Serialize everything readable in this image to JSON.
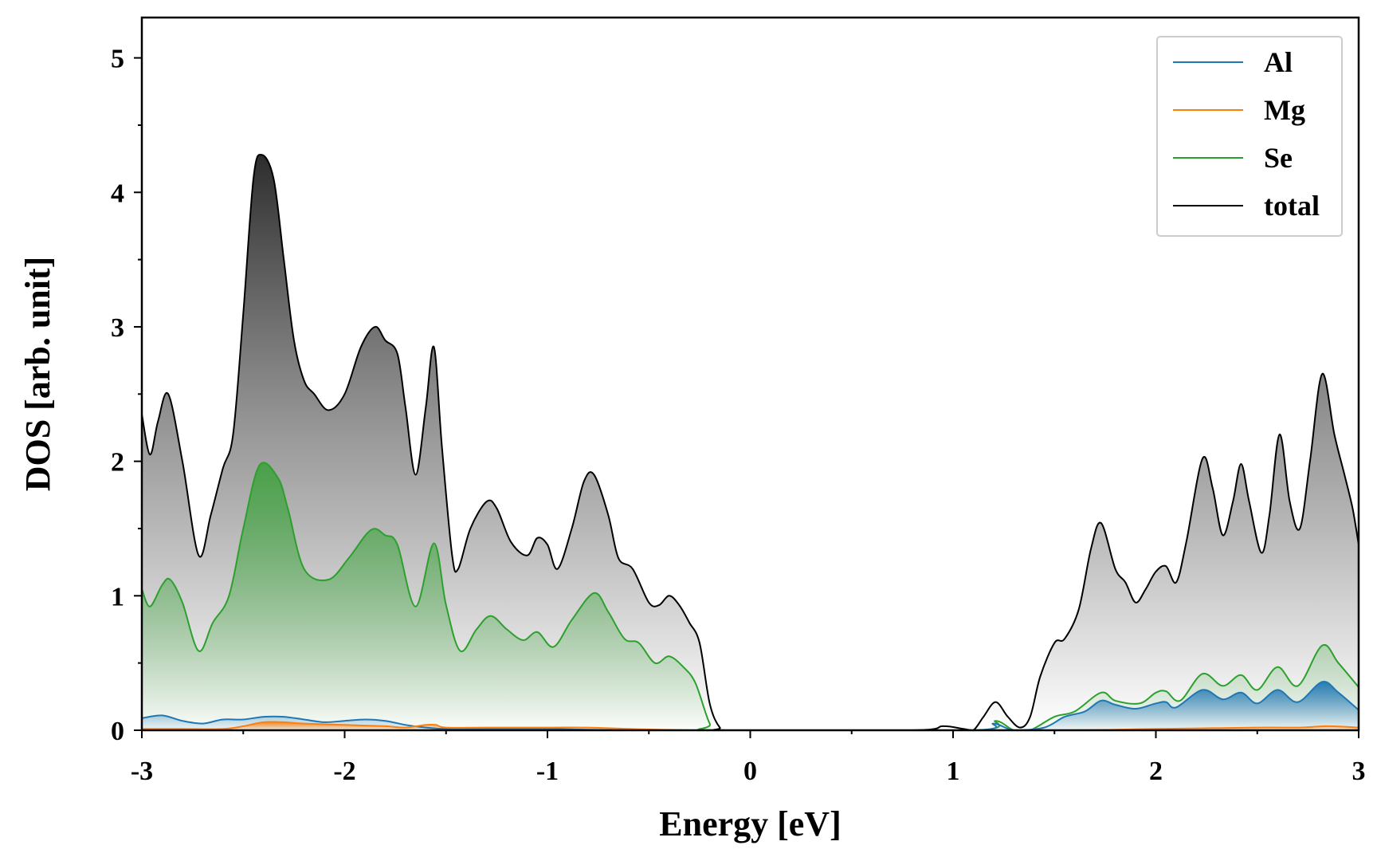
{
  "chart_data": {
    "type": "area",
    "xlabel": "Energy [eV]",
    "ylabel": "DOS [arb. unit]",
    "xlim": [
      -3,
      3
    ],
    "ylim": [
      0,
      5.3
    ],
    "xticks": [
      -3,
      -2,
      -1,
      0,
      1,
      2,
      3
    ],
    "xtick_labels": [
      "-3",
      "-2",
      "-1",
      "0",
      "1",
      "2",
      "3"
    ],
    "yticks": [
      0,
      1,
      2,
      3,
      4,
      5
    ],
    "ytick_labels": [
      "0",
      "1",
      "2",
      "3",
      "4",
      "5"
    ],
    "grid": false,
    "legend_position": "top-right",
    "series": [
      {
        "name": "Al",
        "color": "#1f77b4",
        "fill": true,
        "points": [
          [
            -3.0,
            0.09
          ],
          [
            -2.9,
            0.11
          ],
          [
            -2.8,
            0.07
          ],
          [
            -2.7,
            0.05
          ],
          [
            -2.6,
            0.08
          ],
          [
            -2.5,
            0.08
          ],
          [
            -2.4,
            0.1
          ],
          [
            -2.3,
            0.1
          ],
          [
            -2.2,
            0.08
          ],
          [
            -2.1,
            0.06
          ],
          [
            -2.0,
            0.07
          ],
          [
            -1.9,
            0.08
          ],
          [
            -1.8,
            0.07
          ],
          [
            -1.7,
            0.04
          ],
          [
            -1.6,
            0.02
          ],
          [
            -1.5,
            0.01
          ],
          [
            -1.3,
            0.01
          ],
          [
            -1.0,
            0.01
          ],
          [
            -0.6,
            0.0
          ],
          [
            0.0,
            0.0
          ],
          [
            1.1,
            0.0
          ],
          [
            1.2,
            0.05
          ],
          [
            1.3,
            0.0
          ],
          [
            1.45,
            0.02
          ],
          [
            1.55,
            0.1
          ],
          [
            1.65,
            0.14
          ],
          [
            1.73,
            0.22
          ],
          [
            1.8,
            0.19
          ],
          [
            1.9,
            0.16
          ],
          [
            2.0,
            0.2
          ],
          [
            2.05,
            0.21
          ],
          [
            2.1,
            0.17
          ],
          [
            2.23,
            0.3
          ],
          [
            2.33,
            0.23
          ],
          [
            2.42,
            0.28
          ],
          [
            2.5,
            0.2
          ],
          [
            2.6,
            0.3
          ],
          [
            2.7,
            0.21
          ],
          [
            2.82,
            0.36
          ],
          [
            2.9,
            0.28
          ],
          [
            3.0,
            0.15
          ]
        ]
      },
      {
        "name": "Mg",
        "color": "#ff7f0e",
        "fill": true,
        "points": [
          [
            -3.0,
            0.01
          ],
          [
            -2.8,
            0.01
          ],
          [
            -2.6,
            0.01
          ],
          [
            -2.5,
            0.03
          ],
          [
            -2.4,
            0.06
          ],
          [
            -2.3,
            0.06
          ],
          [
            -2.2,
            0.05
          ],
          [
            -2.0,
            0.04
          ],
          [
            -1.8,
            0.03
          ],
          [
            -1.7,
            0.02
          ],
          [
            -1.6,
            0.04
          ],
          [
            -1.55,
            0.04
          ],
          [
            -1.5,
            0.02
          ],
          [
            -1.3,
            0.02
          ],
          [
            -1.0,
            0.02
          ],
          [
            -0.8,
            0.02
          ],
          [
            -0.6,
            0.01
          ],
          [
            -0.3,
            0.0
          ],
          [
            0.0,
            0.0
          ],
          [
            1.5,
            0.0
          ],
          [
            2.0,
            0.01
          ],
          [
            2.5,
            0.02
          ],
          [
            2.7,
            0.02
          ],
          [
            2.85,
            0.03
          ],
          [
            3.0,
            0.02
          ]
        ]
      },
      {
        "name": "Se",
        "color": "#2ca02c",
        "fill": true,
        "points": [
          [
            -3.0,
            1.05
          ],
          [
            -2.96,
            0.92
          ],
          [
            -2.9,
            1.08
          ],
          [
            -2.86,
            1.12
          ],
          [
            -2.8,
            0.95
          ],
          [
            -2.72,
            0.59
          ],
          [
            -2.65,
            0.8
          ],
          [
            -2.57,
            1.0
          ],
          [
            -2.5,
            1.5
          ],
          [
            -2.42,
            1.97
          ],
          [
            -2.33,
            1.88
          ],
          [
            -2.28,
            1.65
          ],
          [
            -2.2,
            1.2
          ],
          [
            -2.08,
            1.12
          ],
          [
            -1.98,
            1.28
          ],
          [
            -1.87,
            1.49
          ],
          [
            -1.8,
            1.45
          ],
          [
            -1.74,
            1.38
          ],
          [
            -1.65,
            0.92
          ],
          [
            -1.56,
            1.39
          ],
          [
            -1.5,
            0.93
          ],
          [
            -1.43,
            0.59
          ],
          [
            -1.35,
            0.75
          ],
          [
            -1.28,
            0.85
          ],
          [
            -1.2,
            0.75
          ],
          [
            -1.12,
            0.67
          ],
          [
            -1.05,
            0.73
          ],
          [
            -0.97,
            0.62
          ],
          [
            -0.88,
            0.82
          ],
          [
            -0.77,
            1.02
          ],
          [
            -0.7,
            0.88
          ],
          [
            -0.62,
            0.68
          ],
          [
            -0.55,
            0.65
          ],
          [
            -0.47,
            0.5
          ],
          [
            -0.4,
            0.55
          ],
          [
            -0.33,
            0.47
          ],
          [
            -0.27,
            0.35
          ],
          [
            -0.2,
            0.05
          ],
          [
            -0.15,
            0.0
          ],
          [
            1.1,
            0.0
          ],
          [
            1.21,
            0.07
          ],
          [
            1.3,
            0.0
          ],
          [
            1.38,
            0.0
          ],
          [
            1.5,
            0.1
          ],
          [
            1.6,
            0.14
          ],
          [
            1.73,
            0.28
          ],
          [
            1.8,
            0.22
          ],
          [
            1.92,
            0.2
          ],
          [
            2.0,
            0.28
          ],
          [
            2.05,
            0.29
          ],
          [
            2.12,
            0.22
          ],
          [
            2.23,
            0.42
          ],
          [
            2.33,
            0.33
          ],
          [
            2.42,
            0.41
          ],
          [
            2.5,
            0.3
          ],
          [
            2.6,
            0.47
          ],
          [
            2.7,
            0.33
          ],
          [
            2.82,
            0.63
          ],
          [
            2.9,
            0.5
          ],
          [
            3.0,
            0.32
          ]
        ]
      },
      {
        "name": "total",
        "color": "#000000",
        "fill": true,
        "points": [
          [
            -3.0,
            2.35
          ],
          [
            -2.96,
            2.05
          ],
          [
            -2.92,
            2.3
          ],
          [
            -2.87,
            2.5
          ],
          [
            -2.8,
            2.0
          ],
          [
            -2.72,
            1.3
          ],
          [
            -2.66,
            1.6
          ],
          [
            -2.6,
            1.95
          ],
          [
            -2.55,
            2.2
          ],
          [
            -2.5,
            3.1
          ],
          [
            -2.45,
            4.1
          ],
          [
            -2.41,
            4.28
          ],
          [
            -2.35,
            4.1
          ],
          [
            -2.3,
            3.5
          ],
          [
            -2.25,
            2.9
          ],
          [
            -2.2,
            2.6
          ],
          [
            -2.15,
            2.5
          ],
          [
            -2.08,
            2.38
          ],
          [
            -2.0,
            2.5
          ],
          [
            -1.92,
            2.85
          ],
          [
            -1.85,
            3.0
          ],
          [
            -1.8,
            2.9
          ],
          [
            -1.74,
            2.8
          ],
          [
            -1.7,
            2.4
          ],
          [
            -1.65,
            1.9
          ],
          [
            -1.6,
            2.4
          ],
          [
            -1.56,
            2.85
          ],
          [
            -1.52,
            2.1
          ],
          [
            -1.47,
            1.3
          ],
          [
            -1.44,
            1.2
          ],
          [
            -1.38,
            1.5
          ],
          [
            -1.3,
            1.7
          ],
          [
            -1.25,
            1.65
          ],
          [
            -1.18,
            1.4
          ],
          [
            -1.1,
            1.3
          ],
          [
            -1.05,
            1.43
          ],
          [
            -1.0,
            1.38
          ],
          [
            -0.95,
            1.2
          ],
          [
            -0.88,
            1.5
          ],
          [
            -0.82,
            1.85
          ],
          [
            -0.77,
            1.9
          ],
          [
            -0.7,
            1.6
          ],
          [
            -0.65,
            1.28
          ],
          [
            -0.58,
            1.2
          ],
          [
            -0.5,
            0.95
          ],
          [
            -0.45,
            0.93
          ],
          [
            -0.4,
            1.0
          ],
          [
            -0.35,
            0.93
          ],
          [
            -0.3,
            0.8
          ],
          [
            -0.25,
            0.65
          ],
          [
            -0.2,
            0.2
          ],
          [
            -0.15,
            0.02
          ],
          [
            -0.1,
            0.0
          ],
          [
            0.8,
            0.0
          ],
          [
            0.95,
            0.03
          ],
          [
            1.05,
            0.01
          ],
          [
            1.1,
            0.0
          ],
          [
            1.15,
            0.1
          ],
          [
            1.21,
            0.21
          ],
          [
            1.27,
            0.1
          ],
          [
            1.33,
            0.02
          ],
          [
            1.38,
            0.1
          ],
          [
            1.43,
            0.4
          ],
          [
            1.5,
            0.65
          ],
          [
            1.55,
            0.68
          ],
          [
            1.62,
            0.9
          ],
          [
            1.68,
            1.35
          ],
          [
            1.73,
            1.54
          ],
          [
            1.8,
            1.2
          ],
          [
            1.85,
            1.1
          ],
          [
            1.9,
            0.95
          ],
          [
            1.95,
            1.05
          ],
          [
            2.0,
            1.18
          ],
          [
            2.05,
            1.22
          ],
          [
            2.1,
            1.1
          ],
          [
            2.15,
            1.4
          ],
          [
            2.23,
            2.02
          ],
          [
            2.28,
            1.8
          ],
          [
            2.33,
            1.45
          ],
          [
            2.38,
            1.7
          ],
          [
            2.42,
            1.98
          ],
          [
            2.46,
            1.7
          ],
          [
            2.52,
            1.32
          ],
          [
            2.56,
            1.6
          ],
          [
            2.61,
            2.2
          ],
          [
            2.66,
            1.7
          ],
          [
            2.71,
            1.5
          ],
          [
            2.76,
            2.0
          ],
          [
            2.82,
            2.65
          ],
          [
            2.88,
            2.2
          ],
          [
            2.93,
            1.9
          ],
          [
            2.97,
            1.65
          ],
          [
            3.0,
            1.38
          ]
        ]
      }
    ]
  }
}
